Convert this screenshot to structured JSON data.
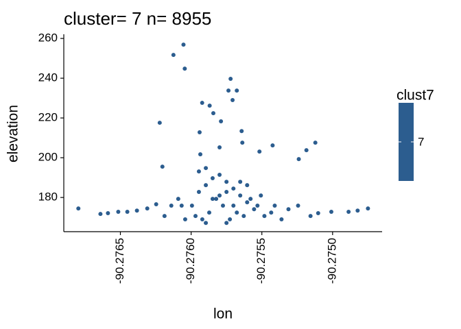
{
  "chart_data": {
    "type": "scatter",
    "title": "cluster= 7 n= 8955",
    "x_label": "lon",
    "y_label": "elevation",
    "color": "#2c5d8f",
    "xlim": [
      -90.2769,
      -90.27465
    ],
    "ylim": [
      162.8,
      262.1
    ],
    "xticks": [
      -90.2765,
      {
        "value": -90.276,
        "label": "-90.2760"
      },
      -90.2755,
      {
        "value": -90.275,
        "label": "-90.2750"
      }
    ],
    "yticks": [
      180,
      200,
      220,
      240,
      260
    ],
    "legend": {
      "title": "clust7",
      "labels": [
        "7"
      ]
    },
    "x": [
      -90.276797,
      -90.276641,
      -90.276588,
      -90.276515,
      -90.276451,
      -90.276383,
      -90.27631,
      -90.276247,
      -90.276188,
      -90.276125,
      -90.276054,
      -90.276045,
      -90.276222,
      -90.276203,
      -90.275922,
      -90.275869,
      -90.275721,
      -90.275736,
      -90.275677,
      -90.275707,
      -90.275843,
      -90.275789,
      -90.275643,
      -90.27594,
      -90.275799,
      -90.275638,
      -90.275517,
      -90.275424,
      -90.275239,
      -90.275185,
      -90.275122,
      -90.275935,
      -90.275244,
      -90.275156,
      -90.275102,
      -90.275009,
      -90.274887,
      -90.274823,
      -90.27475,
      -90.275994,
      -90.275945,
      -90.275896,
      -90.275848,
      -90.275799,
      -90.27575,
      -90.275701,
      -90.275653,
      -90.275604,
      -90.275555,
      -90.275969,
      -90.275921,
      -90.275872,
      -90.275823,
      -90.275775,
      -90.275726,
      -90.275677,
      -90.275628,
      -90.27558,
      -90.275531,
      -90.275945,
      -90.275896,
      -90.275848,
      -90.275799,
      -90.27575,
      -90.275701,
      -90.275653,
      -90.275604,
      -90.275507,
      -90.275482,
      -90.276042,
      -90.276067,
      -90.276091,
      -90.27614,
      -90.275434,
      -90.275409,
      -90.275361,
      -90.275312,
      -90.275896,
      -90.27575
    ],
    "y": [
      174.5,
      171.7,
      172.1,
      172.8,
      172.8,
      173.4,
      174.5,
      176.6,
      170.7,
      251.7,
      256.9,
      244.8,
      217.6,
      195.5,
      227.6,
      226.2,
      239.7,
      233.8,
      233.8,
      229.0,
      222.4,
      218.3,
      213.4,
      212.8,
      205.2,
      207.6,
      203.1,
      206.2,
      199.3,
      203.8,
      207.6,
      201.7,
      175.9,
      170.7,
      172.1,
      172.8,
      172.8,
      173.4,
      174.5,
      175.9,
      182.8,
      186.2,
      189.7,
      191.4,
      187.9,
      184.5,
      181.0,
      177.6,
      174.1,
      170.7,
      169.0,
      172.4,
      179.3,
      175.9,
      169.0,
      172.4,
      170.7,
      179.3,
      175.9,
      193.1,
      194.8,
      179.3,
      181.0,
      182.8,
      175.9,
      187.9,
      186.2,
      181.0,
      170.7,
      169.0,
      175.9,
      179.3,
      175.9,
      172.4,
      175.9,
      169.0,
      174.1,
      167.2,
      167.2
    ]
  }
}
